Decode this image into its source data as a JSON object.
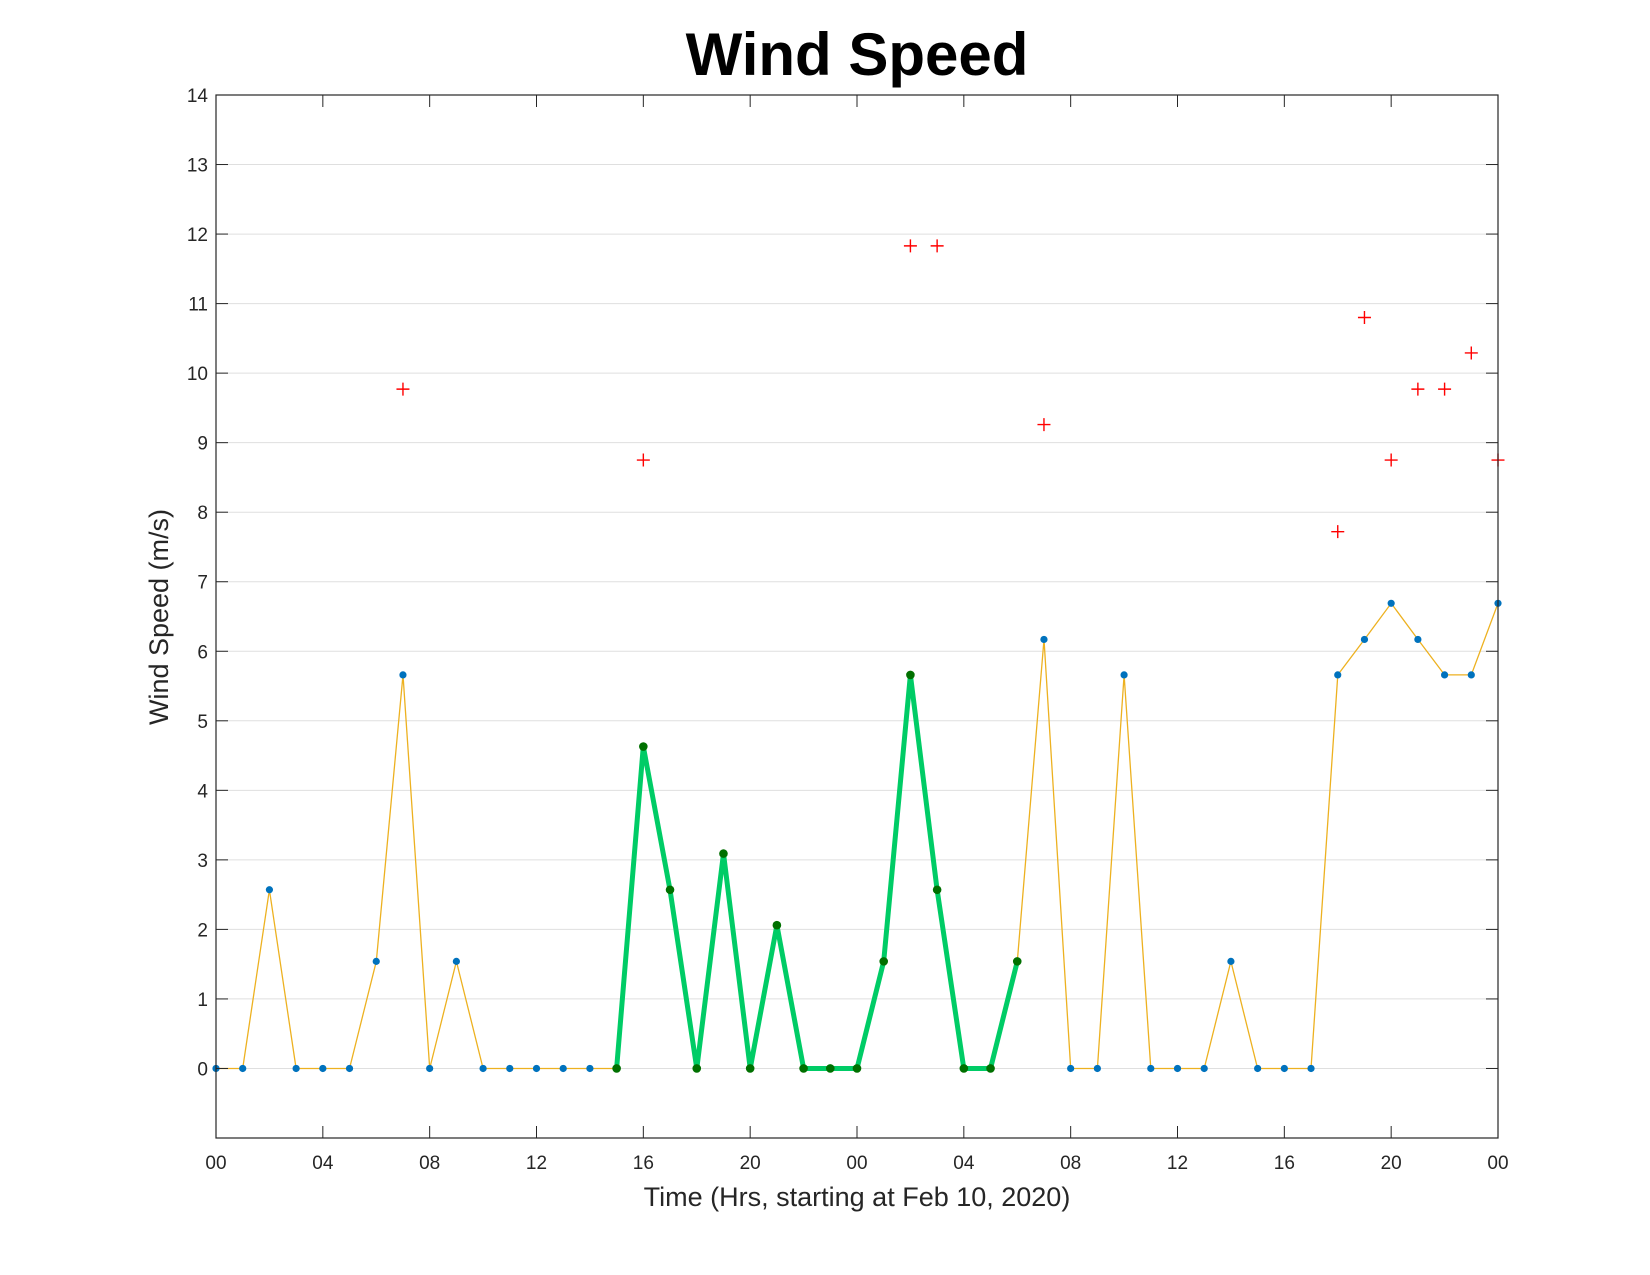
{
  "chart_data": {
    "type": "line",
    "title": "Wind Speed",
    "xlabel": "Time (Hrs, starting at Feb 10, 2020)",
    "ylabel": "Wind Speed (m/s)",
    "xlim": [
      0,
      48
    ],
    "ylim": [
      -1,
      14
    ],
    "x_tick_values": [
      0,
      4,
      8,
      12,
      16,
      20,
      24,
      28,
      32,
      36,
      40,
      44,
      48
    ],
    "x_tick_labels": [
      "00",
      "04",
      "08",
      "12",
      "16",
      "20",
      "00",
      "04",
      "08",
      "12",
      "16",
      "20",
      "00"
    ],
    "y_ticks": [
      0,
      1,
      2,
      3,
      4,
      5,
      6,
      7,
      8,
      9,
      10,
      11,
      12,
      13,
      14
    ],
    "grid": true,
    "colors": {
      "speed_line": "#EDB120",
      "speed_marker": "#0072BD",
      "highlight_line": "#00CC66",
      "highlight_marker": "#007000",
      "gust_marker": "#FF0000",
      "grid": "#DFDFDF",
      "axes": "#262626"
    },
    "series": [
      {
        "role": "speed",
        "style": "thin line with dot markers",
        "x": [
          0,
          1,
          2,
          3,
          4,
          5,
          6,
          7,
          8,
          9,
          10,
          11,
          12,
          13,
          14,
          15,
          16,
          17,
          18,
          19,
          20,
          21,
          22,
          23,
          24,
          25,
          26,
          27,
          28,
          29,
          30,
          31,
          32,
          33,
          34,
          35,
          36,
          37,
          38,
          39,
          40,
          41,
          42,
          43,
          44,
          45,
          46,
          47,
          48
        ],
        "y": [
          0,
          0,
          2.57,
          0,
          0,
          0,
          1.54,
          5.66,
          0,
          1.54,
          0,
          0,
          0,
          0,
          0,
          0,
          4.63,
          2.57,
          0,
          3.09,
          0,
          2.06,
          0,
          0,
          0,
          1.54,
          5.66,
          2.57,
          0,
          0,
          1.54,
          6.17,
          0,
          0,
          5.66,
          0,
          0,
          0,
          1.54,
          0,
          0,
          0,
          5.66,
          6.17,
          6.69,
          6.17,
          5.66,
          5.66,
          6.69
        ]
      },
      {
        "role": "highlight",
        "style": "thick line with dot markers",
        "x": [
          15,
          16,
          17,
          18,
          19,
          20,
          21,
          22,
          23,
          24,
          25,
          26,
          27,
          28,
          29,
          30
        ],
        "y": [
          0,
          4.63,
          2.57,
          0,
          3.09,
          0,
          2.06,
          0,
          0,
          0,
          1.54,
          5.66,
          2.57,
          0,
          0,
          1.54
        ]
      },
      {
        "role": "gust",
        "style": "plus markers",
        "x": [
          7,
          16,
          26,
          27,
          31,
          42,
          43,
          44,
          45,
          46,
          47,
          48
        ],
        "y": [
          9.77,
          8.75,
          11.83,
          11.83,
          9.26,
          7.72,
          10.8,
          8.75,
          9.77,
          9.77,
          10.29,
          8.75
        ]
      }
    ]
  }
}
